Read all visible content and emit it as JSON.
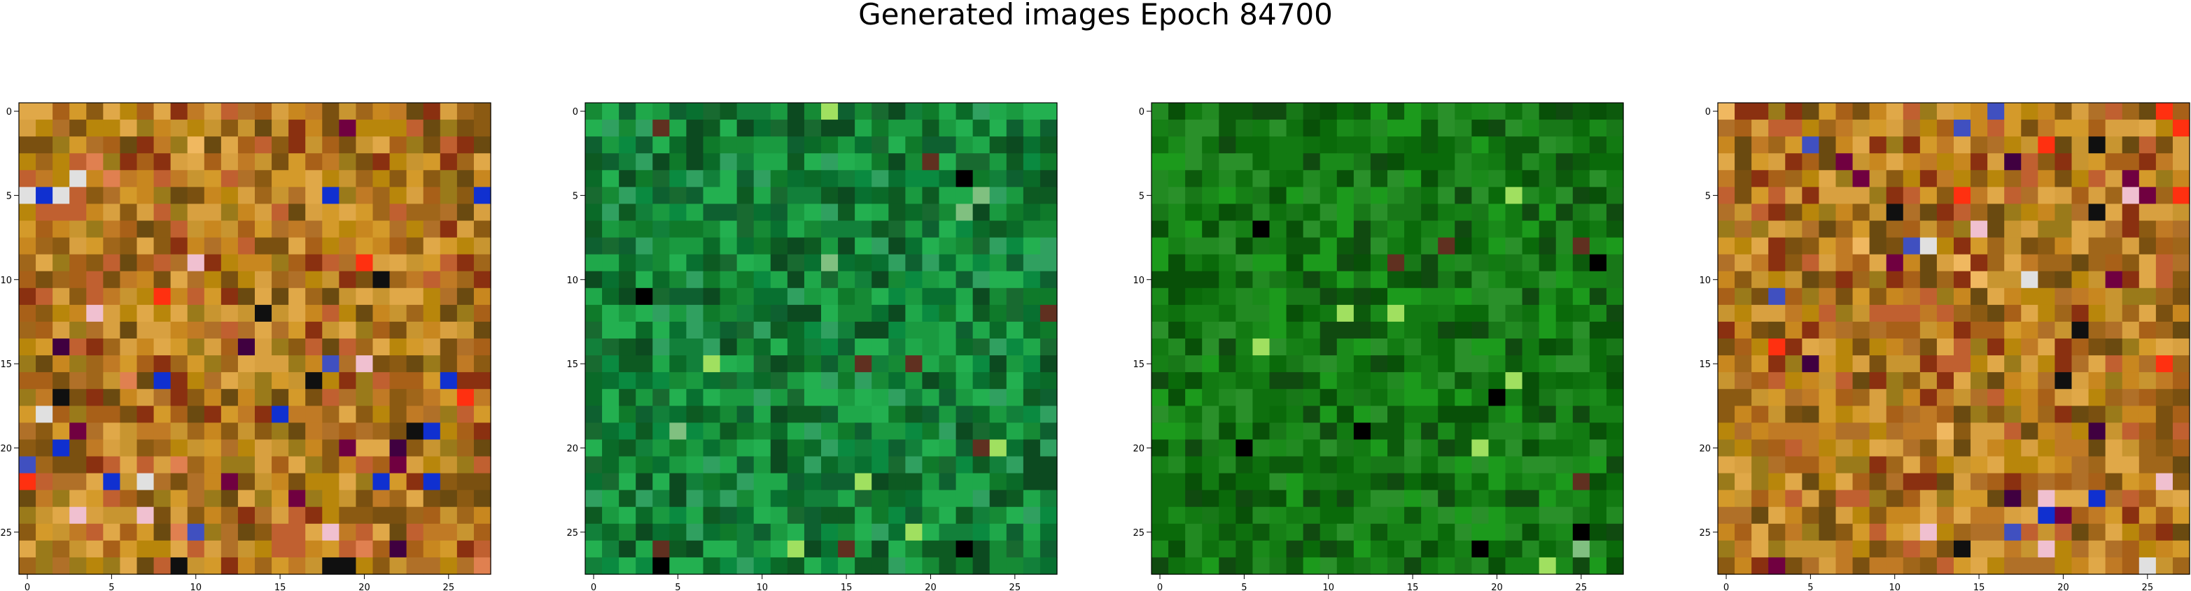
{
  "chart_data": {
    "title": "Generated images Epoch 84700",
    "type": "heatmap",
    "panels": [
      {
        "name": "image-1",
        "palette": "warm"
      },
      {
        "name": "image-2",
        "palette": "green-a"
      },
      {
        "name": "image-3",
        "palette": "green-b"
      },
      {
        "name": "image-4",
        "palette": "warm-b"
      }
    ],
    "grid_size": [
      28,
      28
    ],
    "xlim": [
      -0.5,
      27.5
    ],
    "ylim": [
      27.5,
      -0.5
    ],
    "x_ticks": [
      0,
      5,
      10,
      15,
      20,
      25
    ],
    "y_ticks": [
      0,
      5,
      10,
      15,
      20,
      25
    ],
    "palettes": {
      "warm": [
        "#b8860b",
        "#c8871f",
        "#a0661a",
        "#d49a2a",
        "#8b5a12",
        "#c07a25",
        "#9a7a1a",
        "#d8a040",
        "#b07028",
        "#7a5010",
        "#c89530",
        "#e0a848",
        "#a86018",
        "#8a3010",
        "#c06030",
        "#6a4a10"
      ],
      "warm-b": [
        "#b8860b",
        "#c8871f",
        "#a0661a",
        "#d49a2a",
        "#8b5a12",
        "#c07a25",
        "#9a7a1a",
        "#d8a040",
        "#b07028",
        "#7a5010",
        "#c89530",
        "#e0a848",
        "#a86018",
        "#8a3010",
        "#c06030",
        "#6a4a10"
      ],
      "green-a": [
        "#0f7a2a",
        "#168a35",
        "#0a6a28",
        "#1a9a40",
        "#0d5a22",
        "#1fa84a",
        "#087030",
        "#12803a",
        "#0c4a20",
        "#23b050",
        "#0a8a40",
        "#186a30",
        "#30a060",
        "#0e6030"
      ],
      "green-b": [
        "#127a12",
        "#0a6a0a",
        "#1a8a1a",
        "#0c5a0c",
        "#168016",
        "#228a22",
        "#0e700e",
        "#1c9a1c",
        "#085008",
        "#2a902a",
        "#104a10",
        "#187818"
      ]
    },
    "accents": [
      "#1030d0",
      "#f0c0d0",
      "#400040",
      "#ff3010",
      "#e0e0e0",
      "#700040",
      "#f0b860",
      "#101010",
      "#4050c0",
      "#e08050"
    ]
  }
}
